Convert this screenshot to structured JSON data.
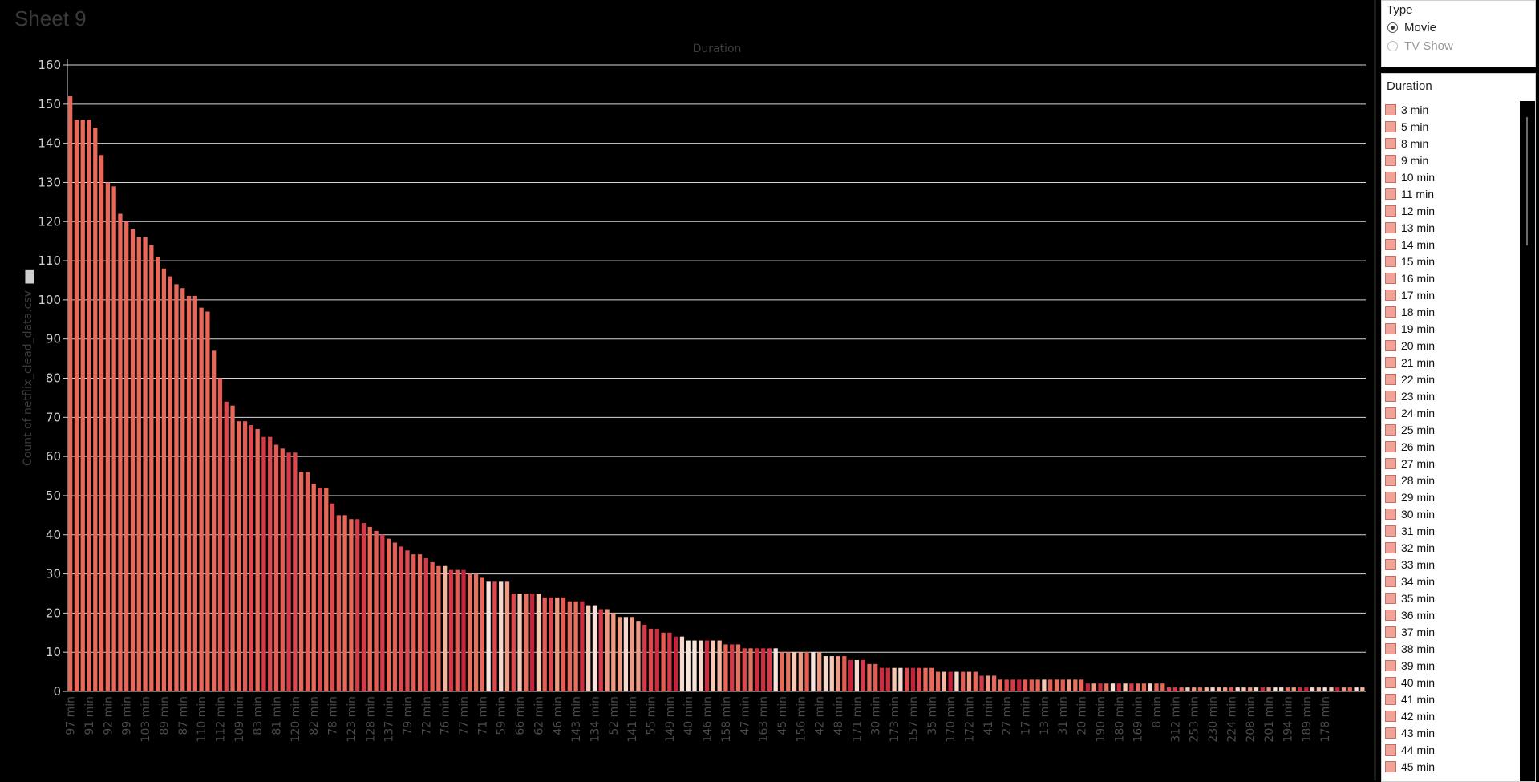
{
  "sheet": {
    "title": "Sheet 9"
  },
  "chart_data": {
    "type": "bar",
    "title": "Duration",
    "ylabel": "Count of netflix_clead_data.csv",
    "xlabel": "",
    "ylim": [
      0,
      160
    ],
    "yticks": [
      0,
      10,
      20,
      30,
      40,
      50,
      60,
      70,
      80,
      90,
      100,
      110,
      120,
      130,
      140,
      150,
      160
    ],
    "grid": true,
    "bar_count": 198,
    "values": [
      152,
      146,
      146,
      146,
      144,
      137,
      130,
      129,
      122,
      120,
      118,
      116,
      116,
      114,
      111,
      108,
      106,
      104,
      103,
      101,
      101,
      98,
      97,
      87,
      80,
      74,
      73,
      69,
      69,
      68,
      67,
      65,
      65,
      63,
      62,
      61,
      61,
      56,
      56,
      53,
      52,
      52,
      48,
      45,
      45,
      44,
      44,
      43,
      42,
      41,
      40,
      39,
      38,
      37,
      36,
      35,
      35,
      34,
      33,
      32,
      32,
      31,
      31,
      31,
      30,
      30,
      29,
      28,
      28,
      28,
      28,
      25,
      25,
      25,
      25,
      25,
      24,
      24,
      24,
      24,
      23,
      23,
      23,
      22,
      22,
      21,
      21,
      20,
      19,
      19,
      19,
      18,
      17,
      16,
      16,
      15,
      15,
      14,
      14,
      13,
      13,
      13,
      13,
      13,
      13,
      12,
      12,
      12,
      11,
      11,
      11,
      11,
      11,
      11,
      10,
      10,
      10,
      10,
      10,
      10,
      10,
      9,
      9,
      9,
      9,
      8,
      8,
      8,
      7,
      7,
      6,
      6,
      6,
      6,
      6,
      6,
      6,
      6,
      6,
      5,
      5,
      5,
      5,
      5,
      5,
      5,
      4,
      4,
      4,
      3,
      3,
      3,
      3,
      3,
      3,
      3,
      3,
      3,
      3,
      3,
      3,
      3,
      3,
      2,
      2,
      2,
      2,
      2,
      2,
      2,
      2,
      2,
      2,
      2,
      2,
      2,
      1,
      1,
      1,
      1,
      1,
      1,
      1,
      1,
      1,
      1,
      1,
      1,
      1,
      1,
      1,
      1,
      1,
      1,
      1,
      1,
      1,
      1,
      1,
      1,
      1,
      1,
      1,
      1,
      1,
      1,
      1,
      1
    ],
    "tick_labels": [
      "97 min",
      "91 min",
      "92 min",
      "99 min",
      "103 min",
      "89 min",
      "87 min",
      "110 min",
      "112 min",
      "109 min",
      "83 min",
      "81 min",
      "120 min",
      "82 min",
      "78 min",
      "123 min",
      "128 min",
      "137 min",
      "79 min",
      "72 min",
      "76 min",
      "77 min",
      "71 min",
      "59 min",
      "66 min",
      "62 min",
      "46 min",
      "143 min",
      "134 min",
      "52 min",
      "141 min",
      "55 min",
      "149 min",
      "40 min",
      "146 min",
      "158 min",
      "47 min",
      "163 min",
      "45 min",
      "156 min",
      "42 min",
      "48 min",
      "171 min",
      "30 min",
      "173 min",
      "157 min",
      "35 min",
      "170 min",
      "172 min",
      "41 min",
      "27 min",
      "17 min",
      "13 min",
      "31 min",
      "20 min",
      "190 min",
      "180 min",
      "169 min",
      "8 min",
      "312 min",
      "253 min",
      "230 min",
      "224 min",
      "208 min",
      "201 min",
      "194 min",
      "189 min",
      "178 min"
    ],
    "tick_every": 3,
    "colors": [
      "#e8685a",
      "#e35d55",
      "#dc4a4f",
      "#d43a48",
      "#e5735f",
      "#ee9a82",
      "#f4b5a0",
      "#f7c8b6",
      "#cc2e40",
      "#c8213a",
      "#f6d9cc",
      "#f9e4db"
    ]
  },
  "filter": {
    "title": "Type",
    "options": [
      {
        "label": "Movie",
        "selected": true
      },
      {
        "label": "TV Show",
        "selected": false
      }
    ]
  },
  "legend": {
    "title": "Duration",
    "swatch_color": "#f2a398",
    "items": [
      "3 min",
      "5 min",
      "8 min",
      "9 min",
      "10 min",
      "11 min",
      "12 min",
      "13 min",
      "14 min",
      "15 min",
      "16 min",
      "17 min",
      "18 min",
      "19 min",
      "20 min",
      "21 min",
      "22 min",
      "23 min",
      "24 min",
      "25 min",
      "26 min",
      "27 min",
      "28 min",
      "29 min",
      "30 min",
      "31 min",
      "32 min",
      "33 min",
      "34 min",
      "35 min",
      "36 min",
      "37 min",
      "38 min",
      "39 min",
      "40 min",
      "41 min",
      "42 min",
      "43 min",
      "44 min",
      "45 min"
    ]
  }
}
